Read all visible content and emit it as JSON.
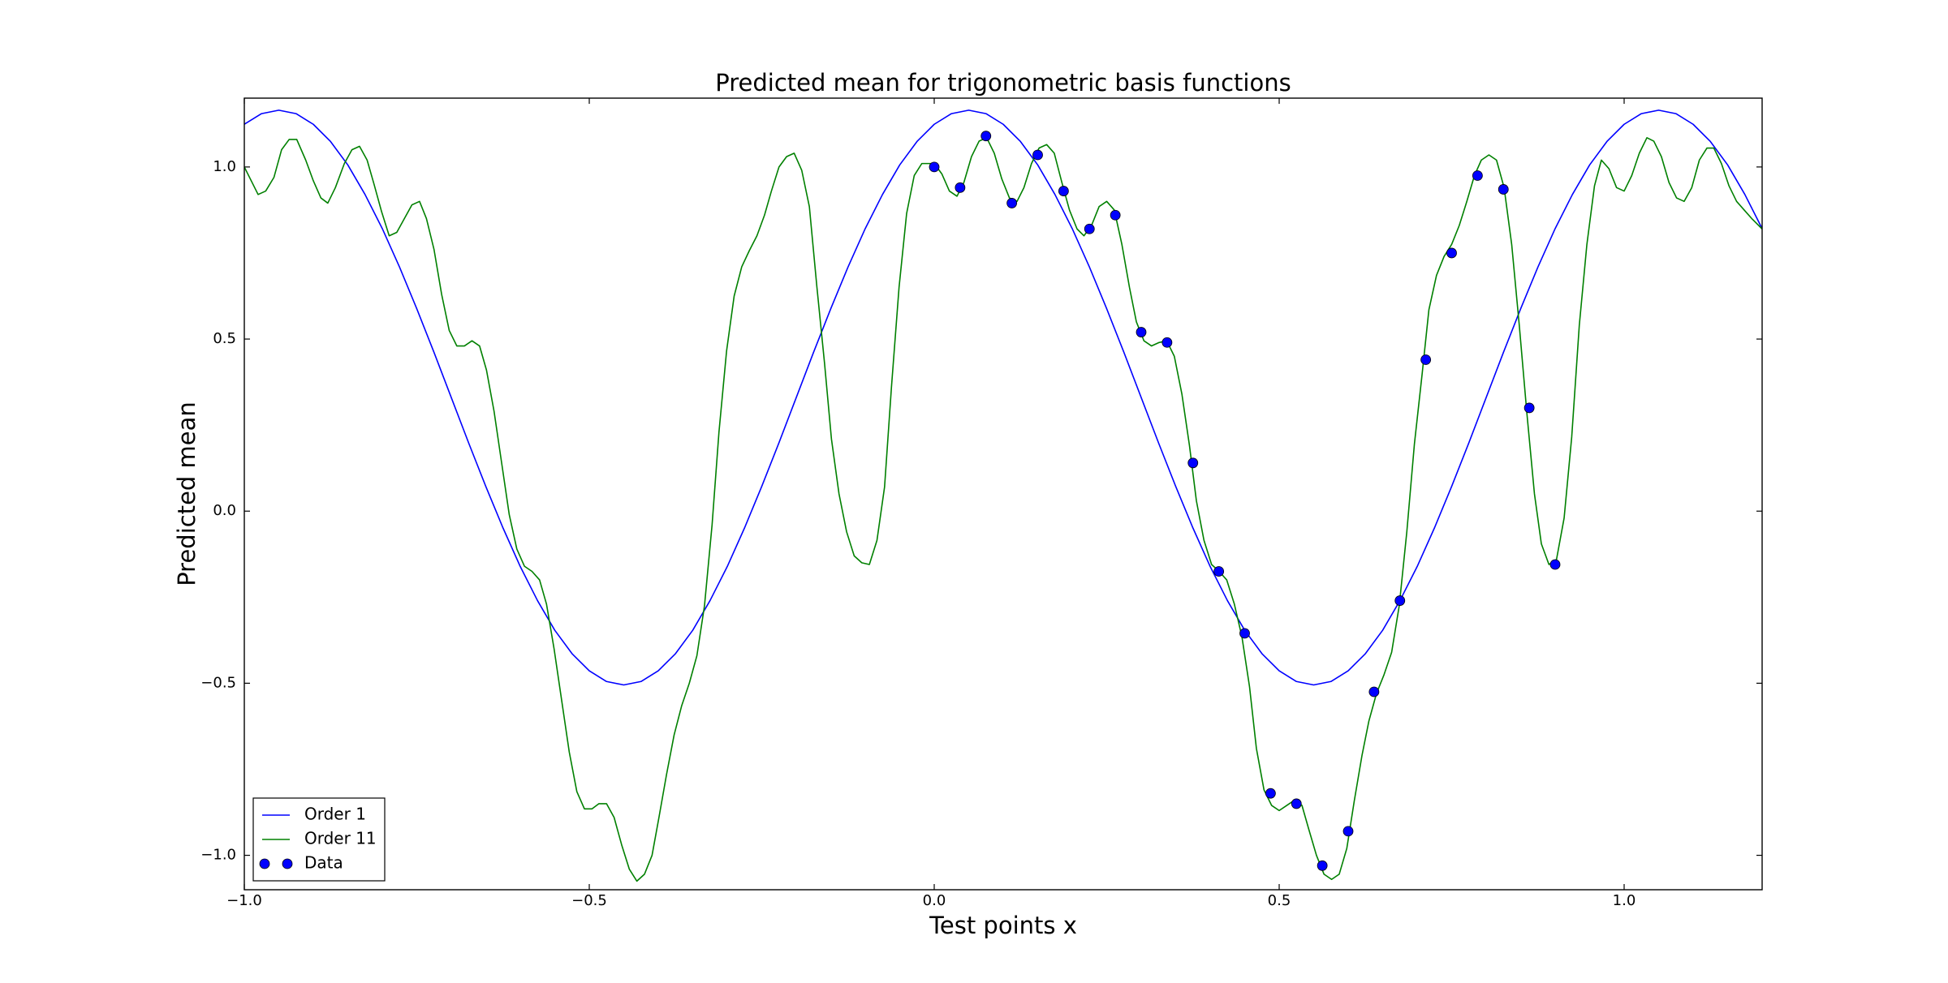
{
  "chart_data": {
    "type": "line",
    "title": "Predicted mean for trigonometric basis functions",
    "xlabel": "Test points x",
    "ylabel": "Predicted mean",
    "xlim": [
      -1.0,
      1.2
    ],
    "ylim": [
      -1.1,
      1.2
    ],
    "xticks": [
      {
        "value": -1.0,
        "label": "−1.0"
      },
      {
        "value": -0.5,
        "label": "−0.5"
      },
      {
        "value": 0.0,
        "label": "0.0"
      },
      {
        "value": 0.5,
        "label": "0.5"
      },
      {
        "value": 1.0,
        "label": "1.0"
      }
    ],
    "yticks": [
      {
        "value": -1.0,
        "label": "−1.0"
      },
      {
        "value": -0.5,
        "label": "−0.5"
      },
      {
        "value": 0.0,
        "label": "0.0"
      },
      {
        "value": 0.5,
        "label": "0.5"
      },
      {
        "value": 1.0,
        "label": "1.0"
      }
    ],
    "grid": false,
    "legend": "lower left",
    "series": [
      {
        "name": "Order 1",
        "color": "#0000ff",
        "mode": "line",
        "x": [
          -1.0,
          -0.975,
          -0.95,
          -0.925,
          -0.9,
          -0.875,
          -0.85,
          -0.825,
          -0.8,
          -0.775,
          -0.75,
          -0.725,
          -0.7,
          -0.675,
          -0.65,
          -0.625,
          -0.6,
          -0.575,
          -0.55,
          -0.525,
          -0.5,
          -0.475,
          -0.45,
          -0.425,
          -0.4,
          -0.375,
          -0.35,
          -0.325,
          -0.3,
          -0.275,
          -0.25,
          -0.225,
          -0.2,
          -0.175,
          -0.15,
          -0.125,
          -0.1,
          -0.075,
          -0.05,
          -0.025,
          0.0,
          0.025,
          0.05,
          0.075,
          0.1,
          0.125,
          0.15,
          0.175,
          0.2,
          0.225,
          0.25,
          0.275,
          0.3,
          0.325,
          0.35,
          0.375,
          0.4,
          0.425,
          0.45,
          0.475,
          0.5,
          0.525,
          0.55,
          0.575,
          0.6,
          0.625,
          0.65,
          0.675,
          0.7,
          0.725,
          0.75,
          0.775,
          0.8,
          0.825,
          0.85,
          0.875,
          0.9,
          0.925,
          0.95,
          0.975,
          1.0,
          1.025,
          1.05,
          1.075,
          1.1,
          1.125,
          1.15,
          1.175,
          1.2
        ],
        "values": [
          1.124,
          1.155,
          1.165,
          1.155,
          1.124,
          1.074,
          1.006,
          0.92,
          0.821,
          0.709,
          0.588,
          0.461,
          0.33,
          0.199,
          0.072,
          -0.049,
          -0.161,
          -0.26,
          -0.346,
          -0.414,
          -0.464,
          -0.495,
          -0.505,
          -0.495,
          -0.464,
          -0.414,
          -0.346,
          -0.26,
          -0.161,
          -0.049,
          0.072,
          0.199,
          0.33,
          0.461,
          0.588,
          0.709,
          0.821,
          0.92,
          1.006,
          1.074,
          1.124,
          1.155,
          1.165,
          1.155,
          1.124,
          1.074,
          1.006,
          0.92,
          0.821,
          0.709,
          0.588,
          0.461,
          0.33,
          0.199,
          0.072,
          -0.049,
          -0.161,
          -0.26,
          -0.346,
          -0.414,
          -0.464,
          -0.495,
          -0.505,
          -0.495,
          -0.464,
          -0.414,
          -0.346,
          -0.26,
          -0.161,
          -0.049,
          0.072,
          0.199,
          0.33,
          0.461,
          0.588,
          0.709,
          0.821,
          0.92,
          1.006,
          1.074,
          1.124,
          1.155,
          1.165,
          1.155,
          1.124,
          1.074,
          1.006,
          0.92,
          0.821
        ]
      },
      {
        "name": "Order 11",
        "color": "#008000",
        "mode": "line",
        "x": [
          -1.0,
          -0.98,
          -0.969,
          -0.957,
          -0.946,
          -0.935,
          -0.924,
          -0.911,
          -0.9,
          -0.889,
          -0.879,
          -0.868,
          -0.855,
          -0.844,
          -0.833,
          -0.822,
          -0.812,
          -0.801,
          -0.79,
          -0.779,
          -0.768,
          -0.757,
          -0.746,
          -0.736,
          -0.725,
          -0.714,
          -0.703,
          -0.692,
          -0.681,
          -0.67,
          -0.659,
          -0.649,
          -0.638,
          -0.627,
          -0.616,
          -0.605,
          -0.594,
          -0.583,
          -0.572,
          -0.562,
          -0.551,
          -0.54,
          -0.529,
          -0.518,
          -0.507,
          -0.496,
          -0.486,
          -0.475,
          -0.464,
          -0.453,
          -0.442,
          -0.431,
          -0.42,
          -0.409,
          -0.399,
          -0.388,
          -0.377,
          -0.366,
          -0.355,
          -0.344,
          -0.333,
          -0.322,
          -0.312,
          -0.301,
          -0.29,
          -0.279,
          -0.268,
          -0.257,
          -0.246,
          -0.236,
          -0.225,
          -0.214,
          -0.203,
          -0.192,
          -0.181,
          -0.17,
          -0.159,
          -0.149,
          -0.138,
          -0.127,
          -0.116,
          -0.105,
          -0.094,
          -0.083,
          -0.072,
          -0.062,
          -0.051,
          -0.04,
          -0.029,
          -0.018,
          -0.007,
          0.0,
          0.011,
          0.022,
          0.033,
          0.043,
          0.054,
          0.065,
          0.076,
          0.087,
          0.098,
          0.109,
          0.12,
          0.13,
          0.141,
          0.152,
          0.163,
          0.174,
          0.185,
          0.196,
          0.207,
          0.217,
          0.228,
          0.239,
          0.25,
          0.261,
          0.272,
          0.283,
          0.293,
          0.304,
          0.315,
          0.326,
          0.337,
          0.348,
          0.359,
          0.37,
          0.38,
          0.391,
          0.402,
          0.413,
          0.424,
          0.435,
          0.446,
          0.457,
          0.467,
          0.478,
          0.489,
          0.5,
          0.511,
          0.522,
          0.533,
          0.543,
          0.554,
          0.565,
          0.576,
          0.587,
          0.598,
          0.609,
          0.62,
          0.63,
          0.641,
          0.652,
          0.663,
          0.674,
          0.685,
          0.696,
          0.707,
          0.717,
          0.728,
          0.739,
          0.75,
          0.761,
          0.772,
          0.783,
          0.793,
          0.804,
          0.815,
          0.826,
          0.837,
          0.848,
          0.859,
          0.87,
          0.88,
          0.891,
          0.902,
          0.913,
          0.924,
          0.935,
          0.946,
          0.957,
          0.967,
          0.978,
          0.989,
          1.0,
          1.011,
          1.022,
          1.033,
          1.043,
          1.054,
          1.065,
          1.076,
          1.087,
          1.098,
          1.109,
          1.12,
          1.13,
          1.141,
          1.152,
          1.163,
          1.174,
          1.185,
          1.2
        ],
        "values": [
          1.0,
          0.92,
          0.93,
          0.97,
          1.05,
          1.08,
          1.08,
          1.02,
          0.96,
          0.91,
          0.895,
          0.94,
          1.01,
          1.05,
          1.06,
          1.02,
          0.95,
          0.87,
          0.8,
          0.81,
          0.85,
          0.89,
          0.9,
          0.85,
          0.76,
          0.63,
          0.525,
          0.48,
          0.48,
          0.495,
          0.48,
          0.41,
          0.29,
          0.14,
          -0.01,
          -0.11,
          -0.16,
          -0.175,
          -0.2,
          -0.27,
          -0.4,
          -0.55,
          -0.7,
          -0.815,
          -0.865,
          -0.865,
          -0.85,
          -0.85,
          -0.89,
          -0.97,
          -1.04,
          -1.075,
          -1.055,
          -1.0,
          -0.89,
          -0.765,
          -0.65,
          -0.565,
          -0.5,
          -0.42,
          -0.275,
          -0.04,
          0.23,
          0.465,
          0.625,
          0.71,
          0.757,
          0.8,
          0.86,
          0.93,
          1.0,
          1.03,
          1.04,
          0.99,
          0.885,
          0.65,
          0.43,
          0.21,
          0.05,
          -0.06,
          -0.13,
          -0.15,
          -0.155,
          -0.085,
          0.07,
          0.36,
          0.65,
          0.865,
          0.975,
          1.01,
          1.01,
          1.01,
          0.98,
          0.93,
          0.915,
          0.955,
          1.03,
          1.075,
          1.085,
          1.04,
          0.965,
          0.91,
          0.9,
          0.94,
          1.01,
          1.055,
          1.065,
          1.04,
          0.955,
          0.875,
          0.82,
          0.8,
          0.83,
          0.885,
          0.9,
          0.875,
          0.775,
          0.65,
          0.55,
          0.495,
          0.48,
          0.49,
          0.495,
          0.45,
          0.34,
          0.19,
          0.03,
          -0.085,
          -0.155,
          -0.175,
          -0.2,
          -0.27,
          -0.365,
          -0.51,
          -0.69,
          -0.81,
          -0.855,
          -0.87,
          -0.855,
          -0.84,
          -0.855,
          -0.925,
          -1.0,
          -1.055,
          -1.07,
          -1.055,
          -0.98,
          -0.84,
          -0.71,
          -0.61,
          -0.53,
          -0.475,
          -0.41,
          -0.275,
          -0.06,
          0.195,
          0.395,
          0.585,
          0.685,
          0.74,
          0.775,
          0.83,
          0.9,
          0.975,
          1.02,
          1.035,
          1.02,
          0.94,
          0.775,
          0.54,
          0.285,
          0.05,
          -0.095,
          -0.155,
          -0.14,
          -0.02,
          0.215,
          0.54,
          0.775,
          0.945,
          1.02,
          0.995,
          0.94,
          0.93,
          0.975,
          1.04,
          1.085,
          1.075,
          1.03,
          0.955,
          0.91,
          0.9,
          0.94,
          1.02,
          1.055,
          1.055,
          1.01,
          0.945,
          0.9,
          0.875,
          0.85,
          0.82
        ]
      },
      {
        "name": "Data",
        "color": "#0000ff",
        "mode": "markers",
        "x": [
          0.0,
          0.0375,
          0.075,
          0.1125,
          0.15,
          0.1875,
          0.225,
          0.2625,
          0.3,
          0.3375,
          0.375,
          0.4125,
          0.45,
          0.4875,
          0.525,
          0.5625,
          0.6,
          0.6375,
          0.675,
          0.7125,
          0.75,
          0.7875,
          0.825,
          0.8625,
          0.9
        ],
        "values": [
          1.0,
          0.94,
          1.09,
          0.895,
          1.035,
          0.93,
          0.82,
          0.86,
          0.52,
          0.49,
          0.14,
          -0.175,
          -0.355,
          -0.82,
          -0.85,
          -1.03,
          -0.93,
          -0.525,
          -0.26,
          0.44,
          0.75,
          0.975,
          0.935,
          0.3,
          -0.155
        ]
      }
    ]
  }
}
